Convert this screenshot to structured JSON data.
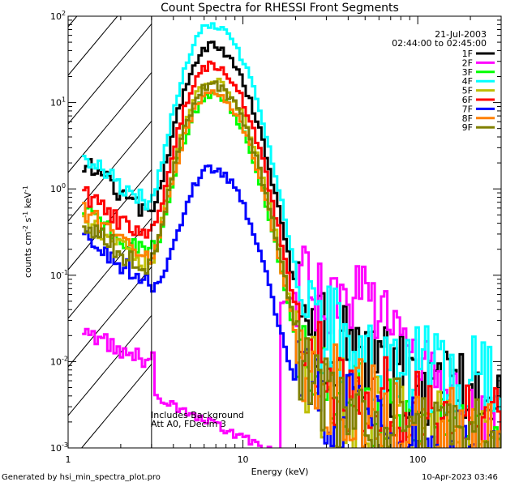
{
  "chart_data": {
    "type": "line",
    "title": "Count Spectra for RHESSI Front Segments",
    "xlabel": "Energy (keV)",
    "ylabel": "counts cm⁻² s⁻¹ keV⁻¹",
    "ylabel_parts": {
      "base": "counts cm",
      "exp1": "-2",
      "mid": " s",
      "exp2": "-1",
      "mid2": " keV",
      "exp3": "-1"
    },
    "xscale": "log",
    "yscale": "log",
    "xlim": [
      1,
      300
    ],
    "ylim": [
      0.001,
      100
    ],
    "x_ticks": [
      {
        "value": 1,
        "label": "1"
      },
      {
        "value": 10,
        "label": "10"
      },
      {
        "value": 100,
        "label": "100"
      }
    ],
    "y_ticks": [
      {
        "value": 0.001,
        "base": "10",
        "exp": "-3"
      },
      {
        "value": 0.01,
        "base": "10",
        "exp": "-2"
      },
      {
        "value": 0.1,
        "base": "10",
        "exp": "-1"
      },
      {
        "value": 1,
        "base": "10",
        "exp": "0"
      },
      {
        "value": 10,
        "base": "10",
        "exp": "1"
      },
      {
        "value": 100,
        "base": "10",
        "exp": "2"
      }
    ],
    "hatched_below_keV": 3,
    "date_label": "21-Jul-2003",
    "time_label": "02:44:00 to 02:45:00",
    "notes": [
      "Includes Background",
      "Att A0, FDecim 3"
    ],
    "series": [
      {
        "name": "1F",
        "color": "#000000",
        "ref": 2.0,
        "peak": 45,
        "tail": 0.0048,
        "tail2": 0
      },
      {
        "name": "2F",
        "color": "#ff00ff",
        "ref": 0.022,
        "peak": 0,
        "tail": 0.0005,
        "tail2": 0.07
      },
      {
        "name": "3F",
        "color": "#00ff00",
        "ref": 0.6,
        "peak": 12,
        "tail": 0.0013,
        "tail2": 0
      },
      {
        "name": "4F",
        "color": "#00ffff",
        "ref": 2.4,
        "peak": 80,
        "tail": 0.008,
        "tail2": 0
      },
      {
        "name": "5F",
        "color": "#bfbf00",
        "ref": 0.45,
        "peak": 18,
        "tail": 0.0015,
        "tail2": 0
      },
      {
        "name": "6F",
        "color": "#ff0000",
        "ref": 0.85,
        "peak": 27,
        "tail": 0.0022,
        "tail2": 0
      },
      {
        "name": "7F",
        "color": "#0000ff",
        "ref": 0.3,
        "peak": 1.7,
        "tail": 0.0011,
        "tail2": 0
      },
      {
        "name": "8F",
        "color": "#ff8000",
        "ref": 0.55,
        "peak": 13,
        "tail": 0.0018,
        "tail2": 0
      },
      {
        "name": "9F",
        "color": "#808000",
        "ref": 0.4,
        "peak": 16,
        "tail": 0.0016,
        "tail2": 0
      }
    ]
  },
  "footer": {
    "generated_by": "Generated by hsi_min_spectra_plot.pro",
    "timestamp": "10-Apr-2023 03:46"
  }
}
